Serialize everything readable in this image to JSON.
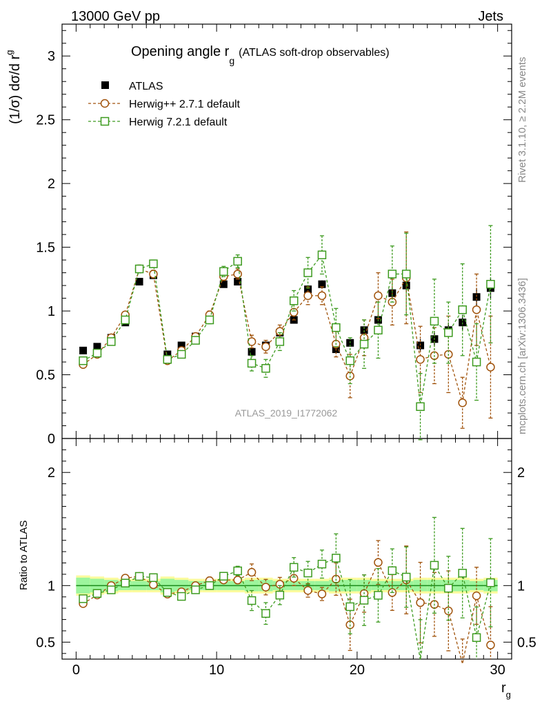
{
  "header": {
    "left": "13000 GeV pp",
    "right": "Jets"
  },
  "side": {
    "rivet": "Rivet 3.1.10, ≥ 2.2M events",
    "mcplots": "mcplots.cern.ch [arXiv:1306.3436]"
  },
  "chart_data": {
    "type": "scatter",
    "title_main": "Opening angle r",
    "title_sub": "g",
    "title_note": "(ATLAS soft-drop observables)",
    "ylabel_main": "(1/σ) dσ/d r",
    "ylabel_sub": "g",
    "xlabel_main": "r",
    "xlabel_sub": "g",
    "ratio_ylabel": "Ratio to ATLAS",
    "watermark": "ATLAS_2019_I1772062",
    "xlim": [
      -1,
      31
    ],
    "ylim": [
      0,
      3.25
    ],
    "ratio_ylim": [
      0.35,
      2.3
    ],
    "yticks": [
      "0",
      "0.5",
      "1",
      "1.5",
      "2",
      "2.5",
      "3"
    ],
    "ratio_yticks": [
      "0.5",
      "1",
      "2"
    ],
    "xticks": [
      "0",
      "10",
      "20",
      "30"
    ],
    "legend": {
      "atlas": "ATLAS",
      "hpp": "Herwig++ 2.7.1 default",
      "h7": "Herwig 7.2.1 default"
    },
    "colors": {
      "data": "#000000",
      "hpp": "#a0520a",
      "h7": "#3c9a1e",
      "band_inner": "#9df59d",
      "band_outer": "#fbfb9d"
    },
    "x": [
      0.5,
      1.5,
      2.5,
      3.5,
      4.5,
      5.5,
      6.5,
      7.5,
      8.5,
      9.5,
      10.5,
      11.5,
      12.5,
      13.5,
      14.5,
      15.5,
      16.5,
      17.5,
      18.5,
      19.5,
      20.5,
      21.5,
      22.5,
      23.5,
      24.5,
      25.5,
      26.5,
      27.5,
      28.5,
      29.5
    ],
    "series": [
      {
        "name": "ATLAS",
        "values": [
          0.69,
          0.72,
          0.79,
          0.91,
          1.23,
          1.28,
          0.66,
          0.73,
          0.8,
          0.93,
          1.21,
          1.23,
          0.68,
          0.73,
          0.83,
          0.93,
          1.17,
          1.21,
          0.7,
          0.75,
          0.85,
          0.93,
          1.14,
          1.2,
          0.73,
          0.78,
          0.85,
          0.91,
          1.11,
          1.18
        ],
        "errors": [
          0.01,
          0.01,
          0.01,
          0.01,
          0.01,
          0.01,
          0.01,
          0.01,
          0.01,
          0.01,
          0.01,
          0.01,
          0.02,
          0.02,
          0.02,
          0.02,
          0.02,
          0.03,
          0.03,
          0.03,
          0.03,
          0.04,
          0.04,
          0.05,
          0.05,
          0.05,
          0.06,
          0.06,
          0.07,
          0.08
        ]
      },
      {
        "name": "Herwig++ 2.7.1 default",
        "values": [
          0.58,
          0.66,
          0.79,
          0.97,
          1.33,
          1.29,
          0.61,
          0.69,
          0.8,
          0.97,
          1.27,
          1.29,
          0.76,
          0.72,
          0.84,
          0.99,
          1.12,
          1.12,
          0.74,
          0.49,
          0.79,
          1.12,
          1.07,
          1.26,
          0.62,
          0.65,
          0.66,
          0.28,
          1.01,
          0.56
        ],
        "errors": [
          0.02,
          0.02,
          0.02,
          0.02,
          0.03,
          0.03,
          0.02,
          0.02,
          0.02,
          0.03,
          0.03,
          0.04,
          0.05,
          0.05,
          0.05,
          0.06,
          0.07,
          0.07,
          0.1,
          0.17,
          0.14,
          0.18,
          0.18,
          0.36,
          0.26,
          0.22,
          0.3,
          0.2,
          0.28,
          0.4
        ]
      },
      {
        "name": "Herwig 7.2.1 default",
        "values": [
          0.61,
          0.67,
          0.76,
          0.93,
          1.33,
          1.37,
          0.62,
          0.66,
          0.77,
          0.93,
          1.31,
          1.39,
          0.59,
          0.55,
          0.76,
          1.08,
          1.3,
          1.44,
          0.87,
          0.61,
          0.74,
          0.85,
          1.29,
          1.29,
          0.25,
          0.92,
          0.83,
          1.01,
          0.6,
          1.21
        ],
        "errors": [
          0.02,
          0.02,
          0.02,
          0.02,
          0.03,
          0.03,
          0.02,
          0.02,
          0.02,
          0.03,
          0.04,
          0.05,
          0.06,
          0.07,
          0.07,
          0.08,
          0.12,
          0.15,
          0.15,
          0.18,
          0.19,
          0.22,
          0.22,
          0.32,
          0.26,
          0.33,
          0.24,
          0.36,
          0.3,
          0.46
        ]
      }
    ],
    "ratio_band": {
      "inner": [
        0.07,
        0.06,
        0.05,
        0.04,
        0.04,
        0.04,
        0.06,
        0.05,
        0.04,
        0.04,
        0.04,
        0.04,
        0.05,
        0.05,
        0.04,
        0.04,
        0.04,
        0.04,
        0.05,
        0.05,
        0.05,
        0.04,
        0.04,
        0.04,
        0.05,
        0.05,
        0.05,
        0.05,
        0.04,
        0.05
      ],
      "outer": [
        0.09,
        0.08,
        0.07,
        0.06,
        0.06,
        0.06,
        0.08,
        0.07,
        0.06,
        0.06,
        0.06,
        0.06,
        0.07,
        0.07,
        0.06,
        0.06,
        0.06,
        0.06,
        0.07,
        0.07,
        0.07,
        0.06,
        0.06,
        0.06,
        0.07,
        0.07,
        0.07,
        0.07,
        0.06,
        0.07
      ]
    }
  }
}
